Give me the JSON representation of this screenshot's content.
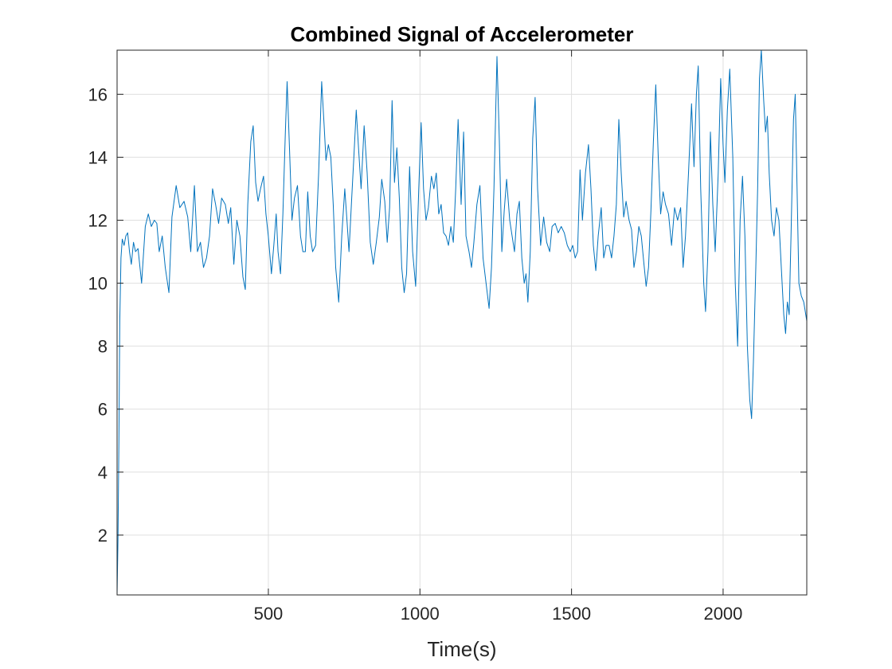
{
  "chart_data": {
    "type": "line",
    "title": "Combined Signal of Accelerometer",
    "xlabel": "Time(s)",
    "ylabel": "",
    "xlim": [
      1,
      2276
    ],
    "ylim": [
      0.1,
      17.4
    ],
    "xticks": [
      500,
      1000,
      1500,
      2000
    ],
    "yticks": [
      2,
      4,
      6,
      8,
      10,
      12,
      14,
      16
    ],
    "grid": true,
    "line_color": "#0072bd",
    "series": [
      {
        "points": [
          [
            1,
            0.1
          ],
          [
            4,
            1.8
          ],
          [
            7,
            5.0
          ],
          [
            10,
            8.8
          ],
          [
            14,
            10.8
          ],
          [
            18,
            11.4
          ],
          [
            24,
            11.2
          ],
          [
            30,
            11.5
          ],
          [
            36,
            11.6
          ],
          [
            42,
            11.0
          ],
          [
            48,
            10.6
          ],
          [
            55,
            11.3
          ],
          [
            62,
            11.0
          ],
          [
            70,
            11.1
          ],
          [
            82,
            10.0
          ],
          [
            94,
            11.8
          ],
          [
            104,
            12.2
          ],
          [
            114,
            11.8
          ],
          [
            124,
            12.0
          ],
          [
            132,
            11.9
          ],
          [
            140,
            11.0
          ],
          [
            150,
            11.5
          ],
          [
            160,
            10.5
          ],
          [
            172,
            9.7
          ],
          [
            182,
            12.1
          ],
          [
            196,
            13.1
          ],
          [
            208,
            12.4
          ],
          [
            222,
            12.6
          ],
          [
            234,
            12.1
          ],
          [
            244,
            11.0
          ],
          [
            256,
            13.1
          ],
          [
            266,
            11.0
          ],
          [
            276,
            11.3
          ],
          [
            286,
            10.5
          ],
          [
            296,
            10.8
          ],
          [
            306,
            11.5
          ],
          [
            316,
            13.0
          ],
          [
            326,
            12.5
          ],
          [
            336,
            11.9
          ],
          [
            346,
            12.7
          ],
          [
            358,
            12.5
          ],
          [
            368,
            11.9
          ],
          [
            376,
            12.4
          ],
          [
            386,
            10.6
          ],
          [
            396,
            12.0
          ],
          [
            406,
            11.5
          ],
          [
            416,
            10.2
          ],
          [
            424,
            9.8
          ],
          [
            432,
            12.5
          ],
          [
            442,
            14.5
          ],
          [
            450,
            15.0
          ],
          [
            458,
            13.2
          ],
          [
            466,
            12.6
          ],
          [
            474,
            13.0
          ],
          [
            484,
            13.4
          ],
          [
            492,
            12.2
          ],
          [
            500,
            11.5
          ],
          [
            510,
            10.3
          ],
          [
            518,
            11.2
          ],
          [
            526,
            12.2
          ],
          [
            532,
            11.0
          ],
          [
            540,
            10.3
          ],
          [
            548,
            12.2
          ],
          [
            556,
            14.8
          ],
          [
            562,
            16.4
          ],
          [
            570,
            14.2
          ],
          [
            578,
            12.0
          ],
          [
            586,
            12.7
          ],
          [
            596,
            13.1
          ],
          [
            606,
            11.5
          ],
          [
            614,
            11.0
          ],
          [
            622,
            11.0
          ],
          [
            630,
            12.9
          ],
          [
            638,
            11.5
          ],
          [
            646,
            11.0
          ],
          [
            656,
            11.2
          ],
          [
            666,
            13.5
          ],
          [
            676,
            16.4
          ],
          [
            684,
            15.0
          ],
          [
            690,
            13.9
          ],
          [
            698,
            14.4
          ],
          [
            706,
            14.0
          ],
          [
            714,
            12.5
          ],
          [
            722,
            10.5
          ],
          [
            732,
            9.4
          ],
          [
            742,
            11.5
          ],
          [
            752,
            13.0
          ],
          [
            760,
            11.9
          ],
          [
            766,
            11.0
          ],
          [
            774,
            12.5
          ],
          [
            782,
            14.0
          ],
          [
            790,
            15.5
          ],
          [
            798,
            14.2
          ],
          [
            806,
            13.0
          ],
          [
            816,
            15.0
          ],
          [
            826,
            13.5
          ],
          [
            836,
            11.3
          ],
          [
            846,
            10.6
          ],
          [
            856,
            11.3
          ],
          [
            866,
            12.1
          ],
          [
            874,
            13.3
          ],
          [
            884,
            12.6
          ],
          [
            892,
            11.3
          ],
          [
            900,
            12.4
          ],
          [
            908,
            15.8
          ],
          [
            916,
            13.2
          ],
          [
            924,
            14.3
          ],
          [
            932,
            12.7
          ],
          [
            940,
            10.5
          ],
          [
            948,
            9.7
          ],
          [
            956,
            10.3
          ],
          [
            966,
            13.7
          ],
          [
            976,
            11.0
          ],
          [
            986,
            9.9
          ],
          [
            996,
            13.0
          ],
          [
            1004,
            15.1
          ],
          [
            1012,
            13.0
          ],
          [
            1020,
            12.0
          ],
          [
            1028,
            12.4
          ],
          [
            1038,
            13.4
          ],
          [
            1046,
            13.0
          ],
          [
            1054,
            13.5
          ],
          [
            1062,
            12.2
          ],
          [
            1070,
            12.5
          ],
          [
            1078,
            11.6
          ],
          [
            1086,
            11.5
          ],
          [
            1094,
            11.2
          ],
          [
            1102,
            11.8
          ],
          [
            1110,
            11.3
          ],
          [
            1118,
            13.0
          ],
          [
            1126,
            15.2
          ],
          [
            1136,
            12.5
          ],
          [
            1144,
            14.8
          ],
          [
            1152,
            11.5
          ],
          [
            1162,
            11.0
          ],
          [
            1170,
            10.5
          ],
          [
            1178,
            11.3
          ],
          [
            1188,
            12.5
          ],
          [
            1198,
            13.1
          ],
          [
            1208,
            10.8
          ],
          [
            1218,
            10.0
          ],
          [
            1228,
            9.2
          ],
          [
            1236,
            10.5
          ],
          [
            1244,
            13.0
          ],
          [
            1254,
            17.2
          ],
          [
            1262,
            14.5
          ],
          [
            1270,
            11.0
          ],
          [
            1278,
            12.3
          ],
          [
            1286,
            13.3
          ],
          [
            1296,
            12.0
          ],
          [
            1304,
            11.5
          ],
          [
            1312,
            11.0
          ],
          [
            1320,
            12.2
          ],
          [
            1328,
            12.6
          ],
          [
            1336,
            10.8
          ],
          [
            1344,
            10.0
          ],
          [
            1350,
            10.3
          ],
          [
            1356,
            9.4
          ],
          [
            1364,
            11.0
          ],
          [
            1372,
            14.6
          ],
          [
            1380,
            15.9
          ],
          [
            1388,
            13.0
          ],
          [
            1398,
            11.2
          ],
          [
            1408,
            12.1
          ],
          [
            1418,
            11.3
          ],
          [
            1428,
            11.0
          ],
          [
            1436,
            11.8
          ],
          [
            1446,
            11.9
          ],
          [
            1456,
            11.6
          ],
          [
            1466,
            11.8
          ],
          [
            1476,
            11.6
          ],
          [
            1486,
            11.2
          ],
          [
            1496,
            11.0
          ],
          [
            1504,
            11.2
          ],
          [
            1512,
            10.8
          ],
          [
            1520,
            11.0
          ],
          [
            1528,
            13.6
          ],
          [
            1536,
            12.0
          ],
          [
            1546,
            13.5
          ],
          [
            1556,
            14.4
          ],
          [
            1564,
            13.0
          ],
          [
            1572,
            11.2
          ],
          [
            1580,
            10.4
          ],
          [
            1588,
            11.5
          ],
          [
            1598,
            12.4
          ],
          [
            1606,
            10.8
          ],
          [
            1614,
            11.2
          ],
          [
            1624,
            11.2
          ],
          [
            1632,
            10.8
          ],
          [
            1640,
            11.5
          ],
          [
            1648,
            12.5
          ],
          [
            1656,
            15.2
          ],
          [
            1664,
            13.5
          ],
          [
            1672,
            12.1
          ],
          [
            1680,
            12.6
          ],
          [
            1690,
            12.0
          ],
          [
            1698,
            11.7
          ],
          [
            1706,
            10.5
          ],
          [
            1714,
            11.0
          ],
          [
            1722,
            11.8
          ],
          [
            1730,
            11.5
          ],
          [
            1738,
            10.7
          ],
          [
            1746,
            9.9
          ],
          [
            1754,
            10.5
          ],
          [
            1762,
            12.3
          ],
          [
            1770,
            14.5
          ],
          [
            1778,
            16.3
          ],
          [
            1786,
            14.0
          ],
          [
            1794,
            12.2
          ],
          [
            1802,
            12.9
          ],
          [
            1810,
            12.5
          ],
          [
            1820,
            12.2
          ],
          [
            1830,
            11.2
          ],
          [
            1840,
            12.4
          ],
          [
            1850,
            12.0
          ],
          [
            1860,
            12.4
          ],
          [
            1868,
            10.5
          ],
          [
            1876,
            11.5
          ],
          [
            1886,
            13.5
          ],
          [
            1896,
            15.7
          ],
          [
            1904,
            13.7
          ],
          [
            1912,
            16.0
          ],
          [
            1918,
            16.9
          ],
          [
            1926,
            13.0
          ],
          [
            1936,
            10.0
          ],
          [
            1942,
            9.1
          ],
          [
            1950,
            11.0
          ],
          [
            1958,
            14.8
          ],
          [
            1966,
            12.5
          ],
          [
            1974,
            11.0
          ],
          [
            1984,
            13.5
          ],
          [
            1992,
            16.5
          ],
          [
            2000,
            14.4
          ],
          [
            2006,
            13.2
          ],
          [
            2014,
            15.5
          ],
          [
            2022,
            16.8
          ],
          [
            2032,
            14.0
          ],
          [
            2040,
            10.0
          ],
          [
            2048,
            8.0
          ],
          [
            2056,
            12.0
          ],
          [
            2064,
            13.4
          ],
          [
            2072,
            11.5
          ],
          [
            2080,
            8.0
          ],
          [
            2088,
            6.3
          ],
          [
            2094,
            5.7
          ],
          [
            2100,
            7.5
          ],
          [
            2108,
            10.5
          ],
          [
            2114,
            13.0
          ],
          [
            2120,
            16.5
          ],
          [
            2126,
            17.4
          ],
          [
            2134,
            15.8
          ],
          [
            2140,
            14.8
          ],
          [
            2146,
            15.3
          ],
          [
            2152,
            13.5
          ],
          [
            2160,
            12.0
          ],
          [
            2168,
            11.5
          ],
          [
            2176,
            12.4
          ],
          [
            2184,
            12.0
          ],
          [
            2192,
            10.5
          ],
          [
            2200,
            9.0
          ],
          [
            2206,
            8.4
          ],
          [
            2212,
            9.4
          ],
          [
            2218,
            9.0
          ],
          [
            2224,
            11.5
          ],
          [
            2232,
            15.2
          ],
          [
            2238,
            16.0
          ],
          [
            2244,
            13.0
          ],
          [
            2250,
            10.0
          ],
          [
            2258,
            9.6
          ],
          [
            2266,
            9.4
          ],
          [
            2276,
            8.8
          ]
        ]
      }
    ]
  }
}
